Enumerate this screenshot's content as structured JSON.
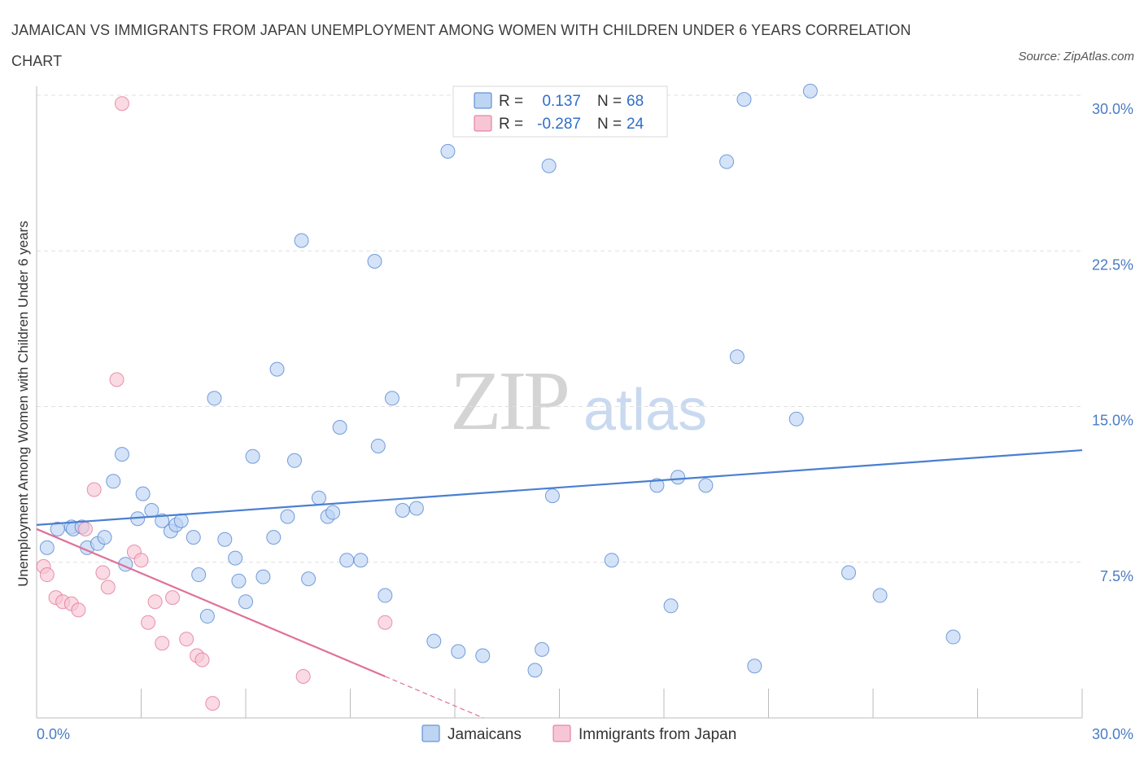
{
  "title": "JAMAICAN VS IMMIGRANTS FROM JAPAN UNEMPLOYMENT AMONG WOMEN WITH CHILDREN UNDER 6 YEARS CORRELATION CHART",
  "source": "Source: ZipAtlas.com",
  "watermark": {
    "zip": "ZIP",
    "atlas": "atlas"
  },
  "colors": {
    "blue": "#4a7fd1",
    "blue_fill": "#bdd4f3",
    "pink": "#e07099",
    "pink_fill": "#f7c6d4",
    "axis_text": "#4a7cc4",
    "grid": "#e0e0e0"
  },
  "stats": {
    "r_label": "R =",
    "n_label": "N =",
    "rows": [
      {
        "r": "0.137",
        "n": "68",
        "color": "blue"
      },
      {
        "r": "-0.287",
        "n": "24",
        "color": "pink"
      }
    ]
  },
  "legend": [
    {
      "label": "Jamaicans",
      "color": "blue"
    },
    {
      "label": "Immigrants from Japan",
      "color": "pink"
    }
  ],
  "chart_data": {
    "type": "scatter",
    "title": "JAMAICAN VS IMMIGRANTS FROM JAPAN UNEMPLOYMENT AMONG WOMEN WITH CHILDREN UNDER 6 YEARS CORRELATION CHART",
    "xlabel": "",
    "ylabel": "Unemployment Among Women with Children Under 6 years",
    "xlim": [
      0,
      30
    ],
    "ylim": [
      0,
      30
    ],
    "x_tick_labels": [
      "0.0%",
      "30.0%"
    ],
    "y_ticks": [
      7.5,
      15.0,
      22.5,
      30.0
    ],
    "y_tick_labels": [
      "7.5%",
      "15.0%",
      "22.5%",
      "30.0%"
    ],
    "grid": true,
    "legend_position": "bottom-center",
    "series": [
      {
        "name": "Jamaicans",
        "color": "#4a7fd1",
        "trend": {
          "x": [
            0,
            30
          ],
          "y": [
            9.3,
            12.9
          ]
        },
        "points": [
          [
            0.3,
            8.2
          ],
          [
            0.6,
            9.1
          ],
          [
            1.0,
            9.2
          ],
          [
            1.05,
            9.1
          ],
          [
            1.3,
            9.2
          ],
          [
            1.45,
            8.2
          ],
          [
            1.75,
            8.4
          ],
          [
            1.95,
            8.7
          ],
          [
            2.2,
            11.4
          ],
          [
            2.45,
            12.7
          ],
          [
            2.55,
            7.4
          ],
          [
            2.9,
            9.6
          ],
          [
            3.05,
            10.8
          ],
          [
            3.3,
            10.0
          ],
          [
            3.6,
            9.5
          ],
          [
            3.85,
            9.0
          ],
          [
            4.0,
            9.3
          ],
          [
            4.15,
            9.5
          ],
          [
            4.5,
            8.7
          ],
          [
            4.65,
            6.9
          ],
          [
            4.9,
            4.9
          ],
          [
            5.1,
            15.4
          ],
          [
            5.4,
            8.6
          ],
          [
            5.7,
            7.7
          ],
          [
            5.8,
            6.6
          ],
          [
            6.0,
            5.6
          ],
          [
            6.2,
            12.6
          ],
          [
            6.5,
            6.8
          ],
          [
            6.8,
            8.7
          ],
          [
            6.9,
            16.8
          ],
          [
            7.2,
            9.7
          ],
          [
            7.4,
            12.4
          ],
          [
            7.6,
            23.0
          ],
          [
            7.8,
            6.7
          ],
          [
            8.1,
            10.6
          ],
          [
            8.35,
            9.7
          ],
          [
            8.5,
            9.9
          ],
          [
            8.7,
            14.0
          ],
          [
            8.9,
            7.6
          ],
          [
            9.3,
            7.6
          ],
          [
            9.7,
            22.0
          ],
          [
            9.8,
            13.1
          ],
          [
            10.0,
            5.9
          ],
          [
            10.2,
            15.4
          ],
          [
            10.5,
            10.0
          ],
          [
            10.9,
            10.1
          ],
          [
            11.4,
            3.7
          ],
          [
            11.8,
            27.3
          ],
          [
            12.1,
            3.2
          ],
          [
            12.8,
            3.0
          ],
          [
            14.3,
            2.3
          ],
          [
            14.5,
            3.3
          ],
          [
            14.7,
            26.6
          ],
          [
            14.8,
            10.7
          ],
          [
            16.5,
            7.6
          ],
          [
            17.8,
            11.2
          ],
          [
            18.2,
            5.4
          ],
          [
            18.4,
            11.6
          ],
          [
            19.2,
            11.2
          ],
          [
            19.8,
            26.8
          ],
          [
            20.1,
            17.4
          ],
          [
            20.3,
            29.8
          ],
          [
            20.6,
            2.5
          ],
          [
            21.8,
            14.4
          ],
          [
            22.2,
            30.2
          ],
          [
            23.3,
            7.0
          ],
          [
            24.2,
            5.9
          ],
          [
            26.3,
            3.9
          ]
        ]
      },
      {
        "name": "Immigrants from Japan",
        "color": "#e07099",
        "trend": {
          "x": [
            0,
            10.0
          ],
          "y": [
            9.1,
            2.0
          ]
        },
        "points": [
          [
            0.2,
            7.3
          ],
          [
            0.3,
            6.9
          ],
          [
            0.55,
            5.8
          ],
          [
            0.75,
            5.6
          ],
          [
            1.0,
            5.5
          ],
          [
            1.2,
            5.2
          ],
          [
            1.4,
            9.1
          ],
          [
            1.65,
            11.0
          ],
          [
            1.9,
            7.0
          ],
          [
            2.05,
            6.3
          ],
          [
            2.3,
            16.3
          ],
          [
            2.45,
            29.6
          ],
          [
            2.8,
            8.0
          ],
          [
            3.0,
            7.6
          ],
          [
            3.2,
            4.6
          ],
          [
            3.4,
            5.6
          ],
          [
            3.6,
            3.6
          ],
          [
            3.9,
            5.8
          ],
          [
            4.3,
            3.8
          ],
          [
            4.6,
            3.0
          ],
          [
            4.75,
            2.8
          ],
          [
            5.05,
            0.7
          ],
          [
            7.65,
            2.0
          ],
          [
            10.0,
            4.6
          ]
        ]
      }
    ]
  }
}
